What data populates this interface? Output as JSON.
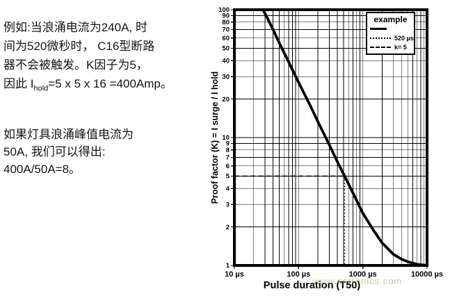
{
  "page": {
    "background": "#ffffff"
  },
  "notes": {
    "p1": {
      "line1": "例如:当浪涌电流为240A, 时",
      "line2": "间为520微秒时， C16型断路",
      "line3": "器不会被触发。K因子为5，",
      "line4_prefix": "因此 I",
      "line4_sub": "hold",
      "line4_suffix": "=5 x 5 x 16 =400Amp。"
    },
    "p2": {
      "line1": "如果灯具浪涌峰值电流为",
      "line2": "50A, 我们可以得出:",
      "line3": "400A/50A=8。"
    }
  },
  "chart_data": {
    "type": "line",
    "title": "",
    "xlabel": "Pulse duration (T50)",
    "ylabel": "Proof factor (K) = I surge / I hold",
    "x_scale": "log",
    "y_scale": "log",
    "xlim": [
      10,
      10000
    ],
    "ylim": [
      1,
      100
    ],
    "grid": true,
    "x_ticks": [
      {
        "value": 10,
        "label": "10 µs"
      },
      {
        "value": 100,
        "label": "100 µs"
      },
      {
        "value": 1000,
        "label": "1000 µs"
      },
      {
        "value": 10000,
        "label": "10000 µs"
      }
    ],
    "y_ticks": [
      100,
      90,
      80,
      70,
      60,
      50,
      40,
      30,
      20,
      10,
      9,
      8,
      7,
      6,
      5,
      4,
      3,
      2,
      1
    ],
    "legend": {
      "title": "example",
      "position": "top-right",
      "entries": [
        {
          "label": "",
          "style": "solid"
        },
        {
          "label": "520 µs",
          "style": "dotted"
        },
        {
          "label": "k= 5",
          "style": "dashed"
        }
      ]
    },
    "series": [
      {
        "name": "example",
        "style": "solid",
        "points": [
          [
            28,
            100
          ],
          [
            40,
            70
          ],
          [
            50,
            55
          ],
          [
            70,
            39
          ],
          [
            100,
            27
          ],
          [
            150,
            18
          ],
          [
            200,
            13.3
          ],
          [
            300,
            8.8
          ],
          [
            400,
            6.5
          ],
          [
            520,
            5
          ],
          [
            700,
            3.7
          ],
          [
            1000,
            2.56
          ],
          [
            1500,
            1.85
          ],
          [
            2000,
            1.5
          ],
          [
            3000,
            1.22
          ],
          [
            4000,
            1.12
          ],
          [
            5000,
            1.07
          ],
          [
            7000,
            1.02
          ],
          [
            10000,
            1.0
          ]
        ]
      },
      {
        "name": "520 µs",
        "style": "dotted",
        "points": [
          [
            520,
            5
          ],
          [
            520,
            1
          ]
        ]
      },
      {
        "name": "k= 5",
        "style": "dashed",
        "points": [
          [
            10,
            5
          ],
          [
            520,
            5
          ]
        ]
      }
    ],
    "annotation_point": {
      "x_us": 520,
      "k": 5
    },
    "watermark": "www.cntronics.com",
    "colors": {
      "line": "#000000",
      "grid": "#000000",
      "watermark": "#7ab648"
    }
  }
}
